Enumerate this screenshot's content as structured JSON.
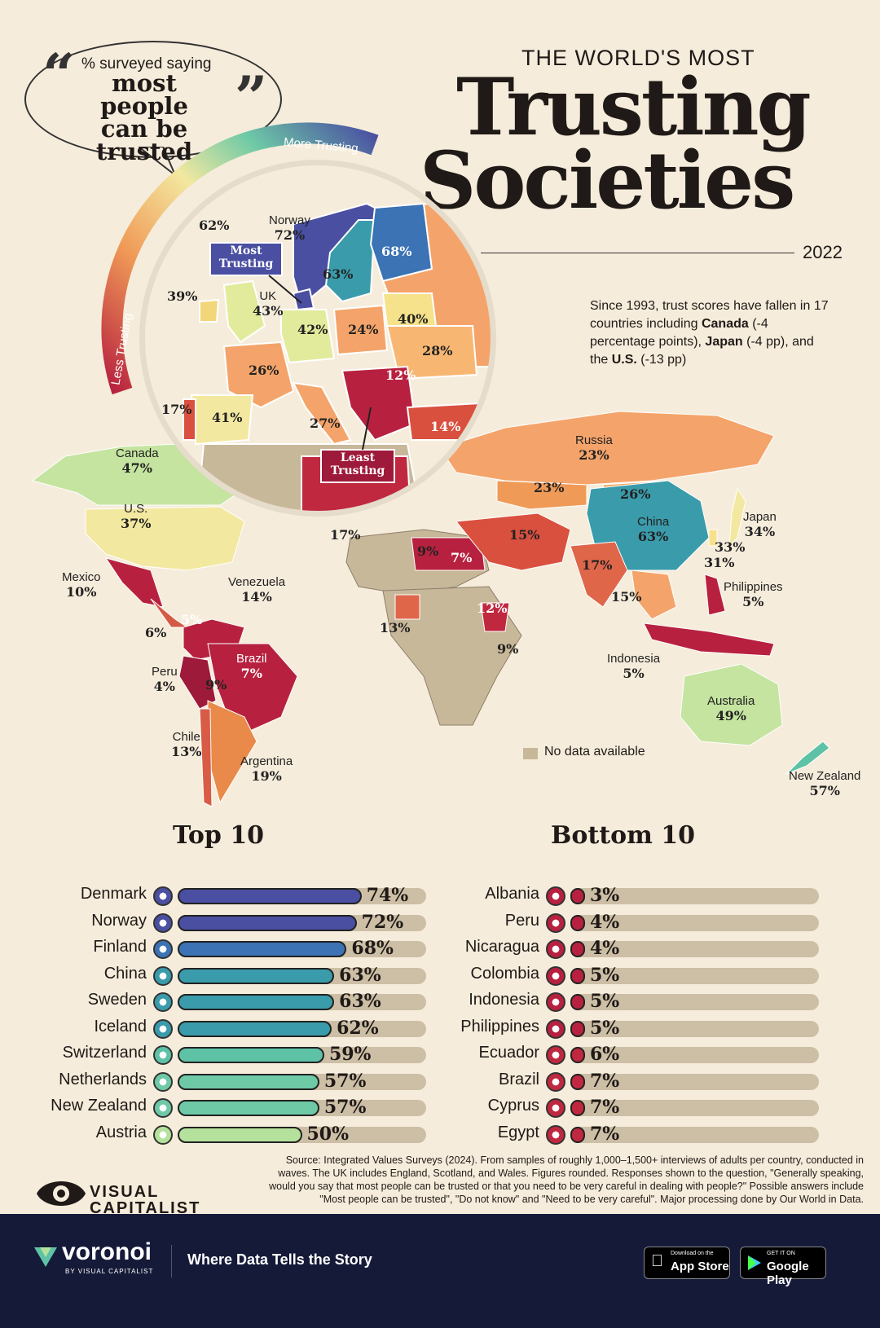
{
  "header": {
    "title_small": "THE WORLD'S MOST",
    "title_big_1": "Trusting",
    "title_big_2": "Societies",
    "year": "2022",
    "bubble_line1": "% surveyed saying",
    "bubble_line2": "most people",
    "bubble_line3": "can be trusted",
    "scale_more": "More Trusting",
    "scale_less": "Less Trusting"
  },
  "note": {
    "text1": "Since 1993, trust scores have fallen in 17 countries including ",
    "canada": "Canada",
    "text2": " (-4 percentage points), ",
    "japan": "Japan",
    "text3": " (-4 pp), and the ",
    "us": "U.S.",
    "text4": " (-13 pp)"
  },
  "map": {
    "most_trusting": "Most Trusting",
    "least_trusting": "Least Trusting",
    "no_data": "No data available",
    "labels": [
      {
        "name": "",
        "value": "62%"
      },
      {
        "name": "Norway",
        "value": "72%"
      },
      {
        "name": "",
        "value": "68%"
      },
      {
        "name": "",
        "value": "63%"
      },
      {
        "name": "",
        "value": "39%"
      },
      {
        "name": "UK",
        "value": "43%"
      },
      {
        "name": "",
        "value": "42%"
      },
      {
        "name": "",
        "value": "24%"
      },
      {
        "name": "",
        "value": "40%"
      },
      {
        "name": "",
        "value": "28%"
      },
      {
        "name": "",
        "value": "26%"
      },
      {
        "name": "",
        "value": "12%"
      },
      {
        "name": "",
        "value": "17%"
      },
      {
        "name": "",
        "value": "41%"
      },
      {
        "name": "",
        "value": "27%"
      },
      {
        "name": "",
        "value": "14%"
      },
      {
        "name": "Canada",
        "value": "47%"
      },
      {
        "name": "U.S.",
        "value": "37%"
      },
      {
        "name": "Russia",
        "value": "23%"
      },
      {
        "name": "",
        "value": "23%"
      },
      {
        "name": "",
        "value": "26%"
      },
      {
        "name": "China",
        "value": "63%"
      },
      {
        "name": "Japan",
        "value": "34%"
      },
      {
        "name": "",
        "value": "33%"
      },
      {
        "name": "",
        "value": "31%"
      },
      {
        "name": "",
        "value": "17%"
      },
      {
        "name": "",
        "value": "15%"
      },
      {
        "name": "",
        "value": "9%"
      },
      {
        "name": "",
        "value": "7%"
      },
      {
        "name": "",
        "value": "17%"
      },
      {
        "name": "",
        "value": "15%"
      },
      {
        "name": "Philippines",
        "value": "5%"
      },
      {
        "name": "Mexico",
        "value": "10%"
      },
      {
        "name": "Venezuela",
        "value": "14%"
      },
      {
        "name": "",
        "value": "5%"
      },
      {
        "name": "",
        "value": "6%"
      },
      {
        "name": "",
        "value": "12%"
      },
      {
        "name": "",
        "value": "13%"
      },
      {
        "name": "",
        "value": "9%"
      },
      {
        "name": "Brazil",
        "value": "7%"
      },
      {
        "name": "Peru",
        "value": "4%"
      },
      {
        "name": "",
        "value": "9%"
      },
      {
        "name": "Indonesia",
        "value": "5%"
      },
      {
        "name": "Australia",
        "value": "49%"
      },
      {
        "name": "Chile",
        "value": "13%"
      },
      {
        "name": "Argentina",
        "value": "19%"
      },
      {
        "name": "New Zealand",
        "value": "57%"
      }
    ]
  },
  "top10": {
    "title": "Top 10",
    "rows": [
      {
        "country": "Denmark",
        "value": 74,
        "label": "74%",
        "color": "#4a4fa1"
      },
      {
        "country": "Norway",
        "value": 72,
        "label": "72%",
        "color": "#4a4fa1"
      },
      {
        "country": "Finland",
        "value": 68,
        "label": "68%",
        "color": "#3b73b4"
      },
      {
        "country": "China",
        "value": 63,
        "label": "63%",
        "color": "#3a9bab"
      },
      {
        "country": "Sweden",
        "value": 63,
        "label": "63%",
        "color": "#3a9bab"
      },
      {
        "country": "Iceland",
        "value": 62,
        "label": "62%",
        "color": "#3a9bab"
      },
      {
        "country": "Switzerland",
        "value": 59,
        "label": "59%",
        "color": "#5ec2a6"
      },
      {
        "country": "Netherlands",
        "value": 57,
        "label": "57%",
        "color": "#6ec9a6"
      },
      {
        "country": "New Zealand",
        "value": 57,
        "label": "57%",
        "color": "#6ec9a6"
      },
      {
        "country": "Austria",
        "value": 50,
        "label": "50%",
        "color": "#b4e29c"
      }
    ]
  },
  "bottom10": {
    "title": "Bottom 10",
    "rows": [
      {
        "country": "Albania",
        "value": 3,
        "label": "3%",
        "color": "#b7213f"
      },
      {
        "country": "Peru",
        "value": 4,
        "label": "4%",
        "color": "#b7213f"
      },
      {
        "country": "Nicaragua",
        "value": 4,
        "label": "4%",
        "color": "#b7213f"
      },
      {
        "country": "Colombia",
        "value": 5,
        "label": "5%",
        "color": "#b7213f"
      },
      {
        "country": "Indonesia",
        "value": 5,
        "label": "5%",
        "color": "#b7213f"
      },
      {
        "country": "Philippines",
        "value": 5,
        "label": "5%",
        "color": "#b7213f"
      },
      {
        "country": "Ecuador",
        "value": 6,
        "label": "6%",
        "color": "#c0283f"
      },
      {
        "country": "Brazil",
        "value": 7,
        "label": "7%",
        "color": "#c0283f"
      },
      {
        "country": "Cyprus",
        "value": 7,
        "label": "7%",
        "color": "#c0283f"
      },
      {
        "country": "Egypt",
        "value": 7,
        "label": "7%",
        "color": "#c0283f"
      }
    ]
  },
  "source": "Source: Integrated Values Surveys (2024). From samples of roughly 1,000–1,500+ interviews of adults per country, conducted in waves. The UK includes England, Scotland, and Wales. Figures rounded. Responses shown to the question, \"Generally speaking, would you say that most people can be trusted or that you need to be very careful in dealing with people?\" Possible answers include \"Most people can be trusted\", \"Do not know\" and \"Need to be very careful\". Major processing done by Our World in Data.",
  "brand": {
    "vc_line1": "VISUAL",
    "vc_line2": "CAPITALIST",
    "voronoi": "voronoi",
    "voronoi_sub": "BY VISUAL CAPITALIST",
    "tagline": "Where Data Tells the Story",
    "appstore_small": "Download on the",
    "appstore_big": "App Store",
    "google_small": "GET IT ON",
    "google_big": "Google Play"
  },
  "chart_data": [
    {
      "type": "bar",
      "title": "Top 10",
      "categories": [
        "Denmark",
        "Norway",
        "Finland",
        "China",
        "Sweden",
        "Iceland",
        "Switzerland",
        "Netherlands",
        "New Zealand",
        "Austria"
      ],
      "values": [
        74,
        72,
        68,
        63,
        63,
        62,
        59,
        57,
        57,
        50
      ]
    },
    {
      "type": "bar",
      "title": "Bottom 10",
      "categories": [
        "Albania",
        "Peru",
        "Nicaragua",
        "Colombia",
        "Indonesia",
        "Philippines",
        "Ecuador",
        "Brazil",
        "Cyprus",
        "Egypt"
      ],
      "values": [
        3,
        4,
        4,
        5,
        5,
        5,
        6,
        7,
        7,
        7
      ]
    }
  ]
}
